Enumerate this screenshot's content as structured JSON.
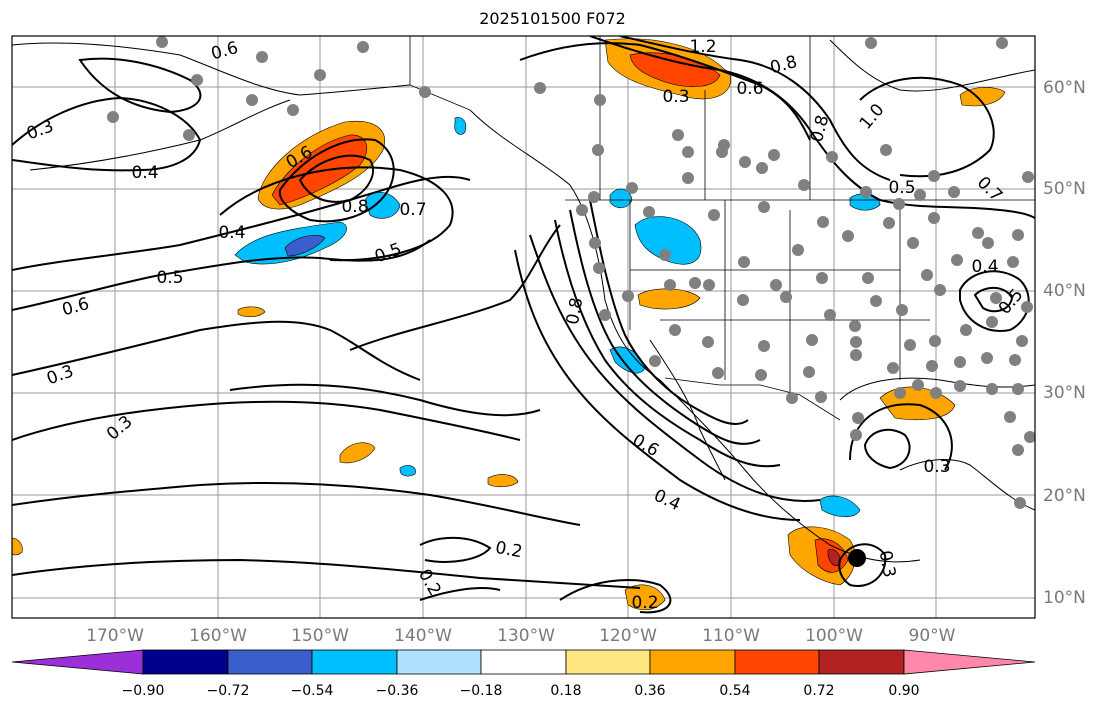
{
  "title": "2025101500 F072",
  "lon_labels": [
    "170°W",
    "160°W",
    "150°W",
    "140°W",
    "130°W",
    "120°W",
    "110°W",
    "100°W",
    "90°W"
  ],
  "lat_labels": [
    "60°N",
    "50°N",
    "40°N",
    "30°N",
    "20°N",
    "10°N"
  ],
  "colorbar": {
    "ticks": [
      "−0.90",
      "−0.72",
      "−0.54",
      "−0.36",
      "−0.18",
      "0.18",
      "0.36",
      "0.54",
      "0.72",
      "0.90"
    ],
    "colors": [
      "#9b30d9",
      "#00008b",
      "#3a5fcd",
      "#00bfff",
      "#b0e2ff",
      "#ffffff",
      "#ffe680",
      "#ffa500",
      "#ff4500",
      "#b22222",
      "#ff88aa"
    ]
  },
  "contour_labels": [
    "0.6",
    "0.3",
    "0.4",
    "0.6",
    "0.8",
    "0.7",
    "0.4",
    "0.5",
    "0.5",
    "0.6",
    "0.3",
    "0.3",
    "1.2",
    "0.8",
    "0.3",
    "0.6",
    "0.8",
    "1.0",
    "0.5",
    "0.7",
    "0.4",
    "0.5",
    "0.8",
    "0.6",
    "0.4",
    "0.2",
    "0.2",
    "0.2",
    "0.3",
    "0.3"
  ]
}
